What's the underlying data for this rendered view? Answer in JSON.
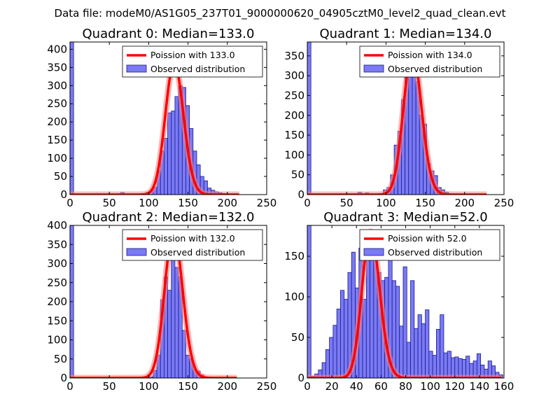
{
  "figure": {
    "suptitle": "Data file: modeM0/AS1G05_237T01_9000000620_04905cztM0_level2_quad_clean.evt"
  },
  "colors": {
    "bar_fill": "#7a7af5",
    "bar_edge": "#1a1a8c",
    "poisson_line": "#ff0000",
    "poisson_halo": "#ff8080",
    "frame": "#000000"
  },
  "chart_data": [
    {
      "type": "bar",
      "title": "Quadrant 0: Median=133.0",
      "xlim": [
        0,
        250
      ],
      "ylim": [
        0,
        420
      ],
      "xticks": [
        0,
        50,
        100,
        150,
        200,
        250
      ],
      "yticks": [
        0,
        50,
        100,
        150,
        200,
        250,
        300,
        350,
        400
      ],
      "legend": {
        "poisson_label": "Poission with 133.0",
        "observed_label": "Observed distribution"
      },
      "poisson": {
        "mean": 133.0,
        "peak": 362,
        "x_range": [
          0,
          215
        ]
      },
      "bins": {
        "start": 0,
        "width": 4.6,
        "counts": [
          420,
          0,
          0,
          0,
          0,
          0,
          0,
          0,
          0,
          0,
          0,
          0,
          0,
          0,
          6,
          0,
          0,
          0,
          0,
          2,
          3,
          6,
          8,
          20,
          65,
          120,
          155,
          225,
          230,
          270,
          300,
          295,
          245,
          182,
          120,
          82,
          50,
          38,
          18,
          12,
          8,
          5,
          3,
          1,
          0,
          0,
          0,
          0,
          0,
          0,
          0,
          0,
          0,
          0
        ]
      }
    },
    {
      "type": "bar",
      "title": "Quadrant 1: Median=134.0",
      "xlim": [
        0,
        250
      ],
      "ylim": [
        0,
        385
      ],
      "xticks": [
        0,
        50,
        100,
        150,
        200,
        250
      ],
      "yticks": [
        0,
        50,
        100,
        150,
        200,
        250,
        300,
        350
      ],
      "legend": {
        "poisson_label": "Poission with 134.0",
        "observed_label": "Observed distribution"
      },
      "poisson": {
        "mean": 134.0,
        "peak": 360,
        "x_range": [
          0,
          228
        ]
      },
      "bins": {
        "start": 0,
        "width": 4.6,
        "counts": [
          385,
          0,
          0,
          0,
          0,
          0,
          0,
          0,
          0,
          0,
          0,
          0,
          0,
          0,
          6,
          0,
          4,
          0,
          0,
          0,
          2,
          12,
          18,
          50,
          125,
          160,
          240,
          330,
          360,
          335,
          285,
          200,
          178,
          78,
          60,
          48,
          18,
          12,
          6,
          2,
          1,
          0,
          0,
          0,
          0,
          0,
          0,
          0,
          0,
          0,
          0
        ]
      }
    },
    {
      "type": "bar",
      "title": "Quadrant 2: Median=132.0",
      "xlim": [
        0,
        250
      ],
      "ylim": [
        0,
        400
      ],
      "xticks": [
        0,
        50,
        100,
        150,
        200,
        250
      ],
      "yticks": [
        0,
        50,
        100,
        150,
        200,
        250,
        300,
        350,
        400
      ],
      "legend": {
        "poisson_label": "Poission with 132.0",
        "observed_label": "Observed distribution"
      },
      "poisson": {
        "mean": 132.0,
        "peak": 382,
        "x_range": [
          0,
          212
        ]
      },
      "bins": {
        "start": 0,
        "width": 4.6,
        "counts": [
          400,
          0,
          0,
          0,
          0,
          0,
          0,
          0,
          0,
          0,
          0,
          0,
          0,
          0,
          0,
          0,
          1,
          0,
          0,
          0,
          0,
          2,
          3,
          20,
          60,
          205,
          265,
          230,
          380,
          290,
          265,
          125,
          60,
          50,
          22,
          18,
          8,
          3,
          1,
          0,
          0,
          0,
          0,
          0,
          0,
          0,
          0,
          0,
          0,
          0
        ]
      }
    },
    {
      "type": "bar",
      "title": "Quadrant 3: Median=52.0",
      "xlim": [
        0,
        160
      ],
      "ylim": [
        0,
        188
      ],
      "xticks": [
        0,
        20,
        40,
        60,
        80,
        100,
        120,
        140,
        160
      ],
      "yticks": [
        0,
        50,
        100,
        150
      ],
      "legend": {
        "poisson_label": "Poission with 52.0",
        "observed_label": "Observed distribution"
      },
      "poisson": {
        "mean": 52.0,
        "peak": 180,
        "x_range": [
          0,
          158
        ]
      },
      "bins": {
        "start": 0,
        "width": 3.0,
        "counts": [
          188,
          2,
          5,
          10,
          19,
          35,
          50,
          65,
          85,
          108,
          97,
          130,
          155,
          111,
          160,
          97,
          152,
          155,
          180,
          130,
          120,
          124,
          153,
          120,
          113,
          64,
          137,
          44,
          120,
          61,
          78,
          67,
          84,
          33,
          28,
          60,
          78,
          31,
          33,
          25,
          26,
          24,
          23,
          27,
          18,
          21,
          30,
          16,
          11,
          21,
          15,
          7,
          4,
          0
        ]
      }
    }
  ]
}
